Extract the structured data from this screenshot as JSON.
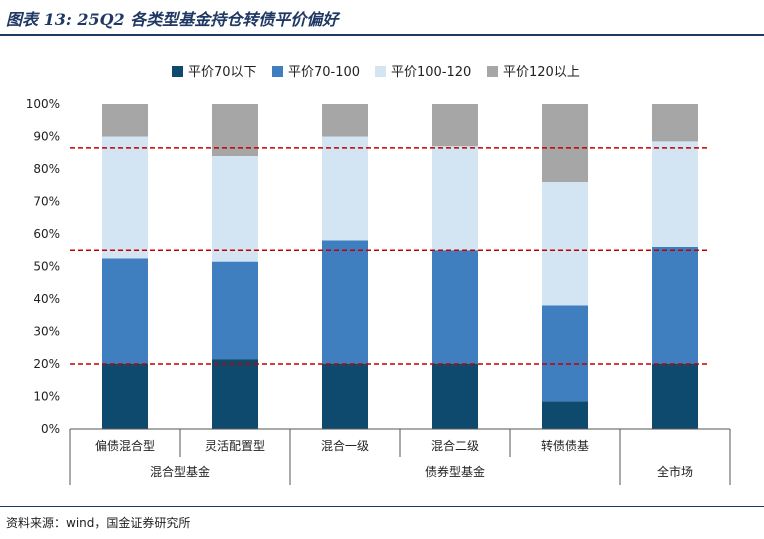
{
  "header": {
    "title": "图表 13: 25Q2 各类型基金持仓转债平价偏好"
  },
  "footer": {
    "source": "资料来源：wind，国金证券研究所"
  },
  "chart_data": {
    "type": "bar",
    "stacked": true,
    "normalized": true,
    "categories": [
      "偏债混合型",
      "灵活配置型",
      "混合一级",
      "混合二级",
      "转债债基",
      "全市场"
    ],
    "groups": [
      {
        "label": "混合型基金",
        "members": [
          "偏债混合型",
          "灵活配置型"
        ]
      },
      {
        "label": "债券型基金",
        "members": [
          "混合一级",
          "混合二级",
          "转债债基"
        ]
      },
      {
        "label": "全市场",
        "members": [
          "全市场"
        ]
      }
    ],
    "series": [
      {
        "name": "平价70以下",
        "color": "#0e4a6e",
        "values": [
          20,
          21.5,
          20,
          20,
          8.5,
          20
        ]
      },
      {
        "name": "平价70-100",
        "color": "#3f7fc0",
        "values": [
          32.5,
          30,
          38,
          35,
          29.5,
          36
        ]
      },
      {
        "name": "平价100-120",
        "color": "#d3e4f3",
        "values": [
          37.5,
          32.5,
          32,
          32,
          38,
          32.5
        ]
      },
      {
        "name": "平价120以上",
        "color": "#a6a6a6",
        "values": [
          10,
          16,
          10,
          13,
          24,
          11.5
        ]
      }
    ],
    "reference_lines": [
      {
        "value": 86.5,
        "color": "#c00000",
        "style": "dashed"
      },
      {
        "value": 55,
        "color": "#c00000",
        "style": "dashed"
      },
      {
        "value": 20,
        "color": "#c00000",
        "style": "dashed"
      }
    ],
    "yticks": [
      "0%",
      "10%",
      "20%",
      "30%",
      "40%",
      "50%",
      "60%",
      "70%",
      "80%",
      "90%",
      "100%"
    ],
    "ylim": [
      0,
      100
    ],
    "legend_position": "top-center",
    "grid": false
  }
}
